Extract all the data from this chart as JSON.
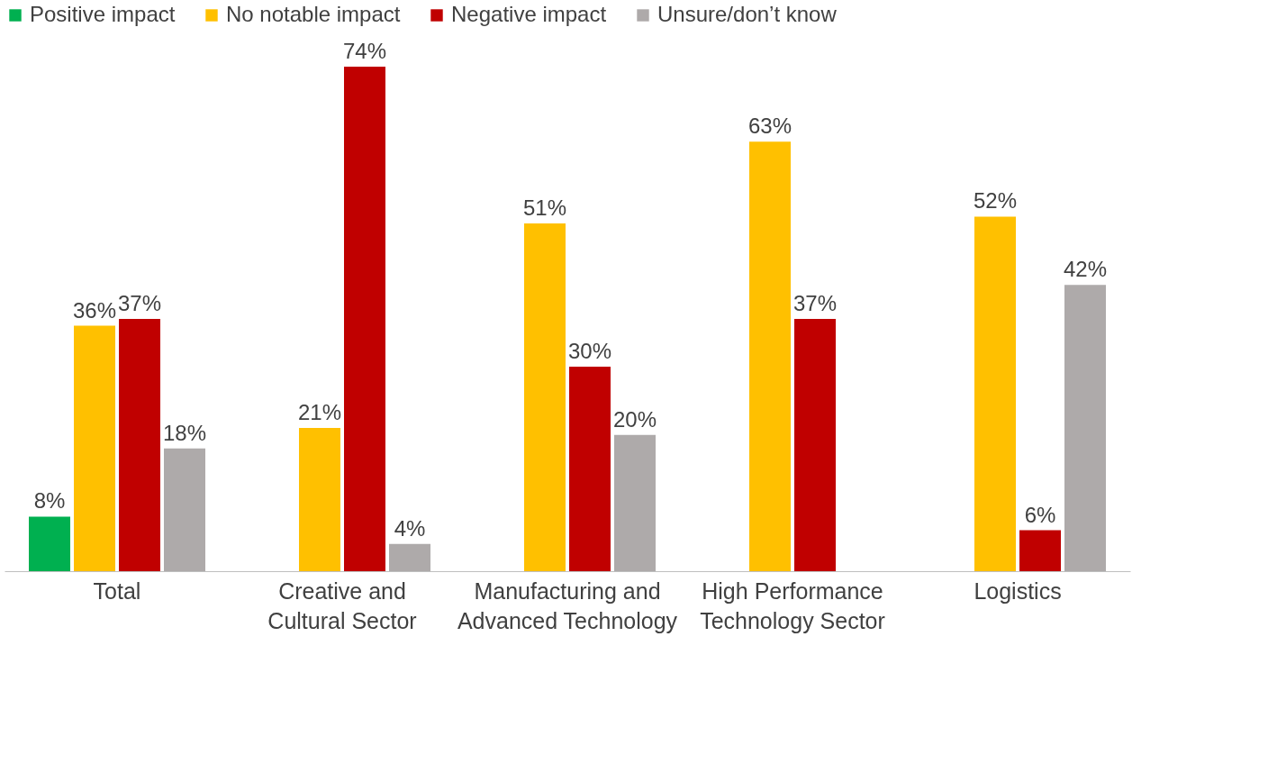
{
  "chart_data": {
    "type": "bar",
    "categories": [
      "Total",
      "Creative and Cultural Sector",
      "Manufacturing and Advanced Technology",
      "High Performance Technology Sector",
      "Logistics"
    ],
    "series": [
      {
        "name": "Positive impact",
        "color": "#00b050",
        "values": [
          8,
          null,
          null,
          null,
          null
        ],
        "value_labels": [
          "8%",
          null,
          null,
          null,
          null
        ]
      },
      {
        "name": "No notable impact",
        "color": "#ffc000",
        "values": [
          36,
          21,
          51,
          63,
          52
        ],
        "value_labels": [
          "36%",
          "21%",
          "51%",
          "63%",
          "52%"
        ]
      },
      {
        "name": "Negative impact",
        "color": "#c00000",
        "values": [
          37,
          74,
          30,
          37,
          6
        ],
        "value_labels": [
          "37%",
          "74%",
          "30%",
          "37%",
          "6%"
        ]
      },
      {
        "name": "Unsure/don’t know",
        "color": "#aeaaaa",
        "values": [
          18,
          4,
          20,
          null,
          42
        ],
        "value_labels": [
          "18%",
          "4%",
          "20%",
          null,
          "42%"
        ]
      }
    ],
    "legend": "top",
    "grid": false
  }
}
